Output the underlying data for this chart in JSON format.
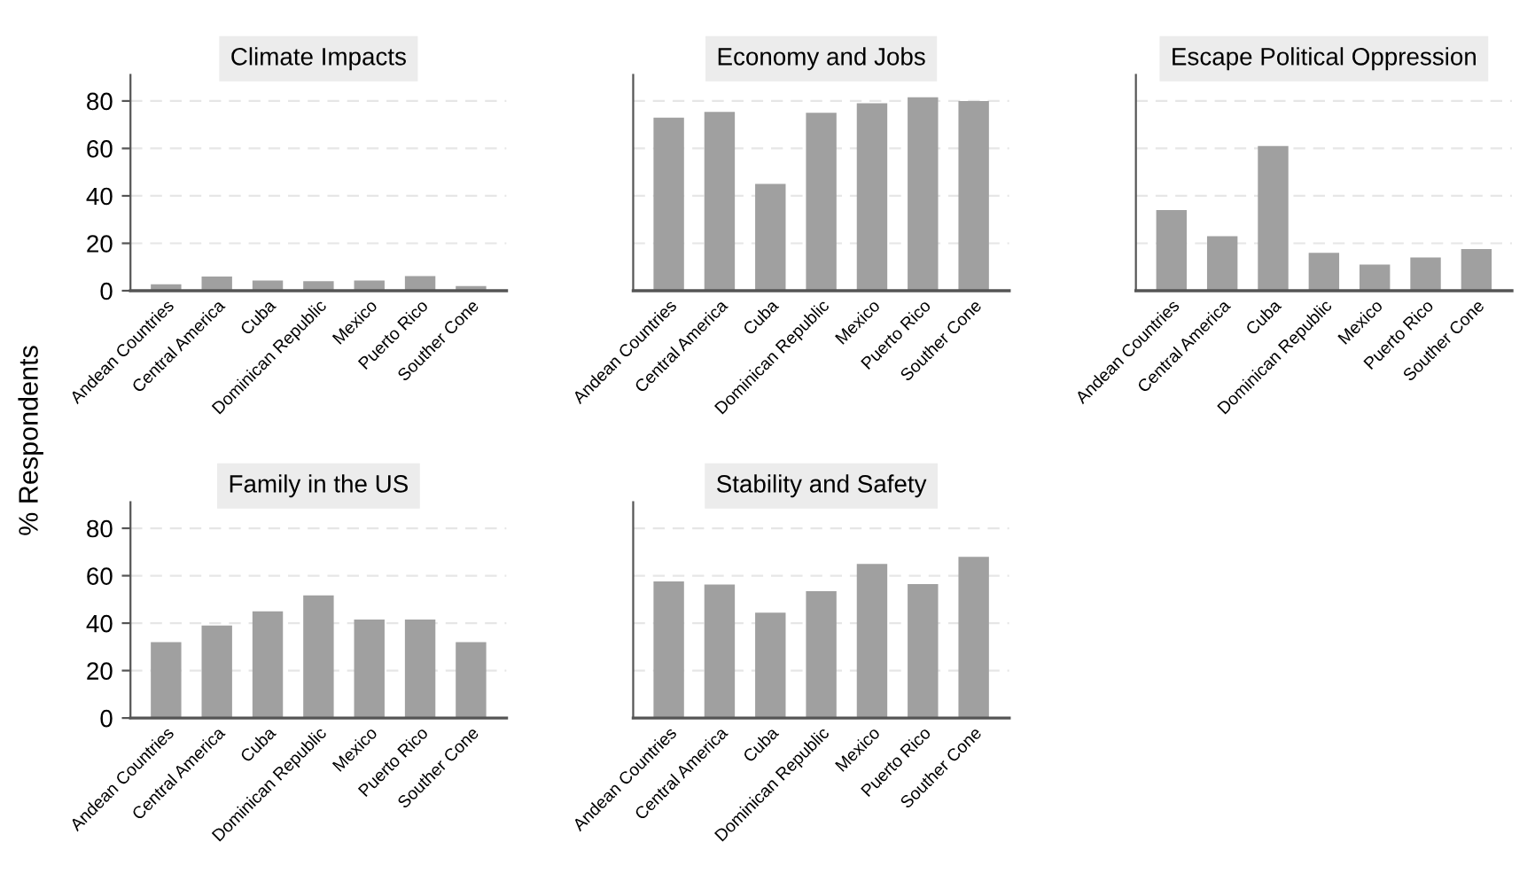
{
  "chart_data": [
    {
      "type": "bar",
      "title": "Climate Impacts",
      "ylabel": "% Respondents",
      "categories": [
        "Andean Countries",
        "Central America",
        "Cuba",
        "Dominican Republic",
        "Mexico",
        "Puerto Rico",
        "Souther Cone"
      ],
      "values": [
        2.7,
        6,
        4.3,
        4,
        4.3,
        6.2,
        2
      ],
      "color": "#a0a0a0",
      "ylim": [
        0,
        91
      ],
      "yticks": [
        0,
        20,
        40,
        60,
        80
      ],
      "grid": "y"
    },
    {
      "type": "bar",
      "title": "Economy and Jobs",
      "categories": [
        "Andean Countries",
        "Central America",
        "Cuba",
        "Dominican Republic",
        "Mexico",
        "Puerto Rico",
        "Souther Cone"
      ],
      "values": [
        73,
        75.4,
        45,
        75,
        79,
        81.6,
        80
      ],
      "color": "#a0a0a0",
      "ylim": [
        0,
        91
      ],
      "yticks": [
        0,
        20,
        40,
        60,
        80
      ],
      "grid": "y",
      "tick_labels": "x"
    },
    {
      "type": "bar",
      "title": "Escape Political Oppression",
      "categories": [
        "Andean Countries",
        "Central America",
        "Cuba",
        "Dominican Republic",
        "Mexico",
        "Puerto Rico",
        "Souther Cone"
      ],
      "values": [
        34,
        23,
        61,
        16,
        11,
        14,
        17.6
      ],
      "color": "#a0a0a0",
      "ylim": [
        0,
        91
      ],
      "yticks": [
        0,
        20,
        40,
        60,
        80
      ],
      "grid": "y",
      "tick_labels": "x"
    },
    {
      "type": "bar",
      "title": "Family in the US",
      "categories": [
        "Andean Countries",
        "Central America",
        "Cuba",
        "Dominican Republic",
        "Mexico",
        "Puerto Rico",
        "Souther Cone"
      ],
      "values": [
        32,
        39,
        45,
        51.7,
        41.5,
        41.5,
        32
      ],
      "color": "#a0a0a0",
      "ylim": [
        0,
        91
      ],
      "yticks": [
        0,
        20,
        40,
        60,
        80
      ],
      "grid": "y"
    },
    {
      "type": "bar",
      "title": "Stability and Safety",
      "categories": [
        "Andean Countries",
        "Central America",
        "Cuba",
        "Dominican Republic",
        "Mexico",
        "Puerto Rico",
        "Souther Cone"
      ],
      "values": [
        57.6,
        56.3,
        44.4,
        53.5,
        65,
        56.5,
        68
      ],
      "color": "#a0a0a0",
      "ylim": [
        0,
        91
      ],
      "yticks": [
        0,
        20,
        40,
        60,
        80
      ],
      "grid": "y",
      "tick_labels": "x"
    }
  ]
}
